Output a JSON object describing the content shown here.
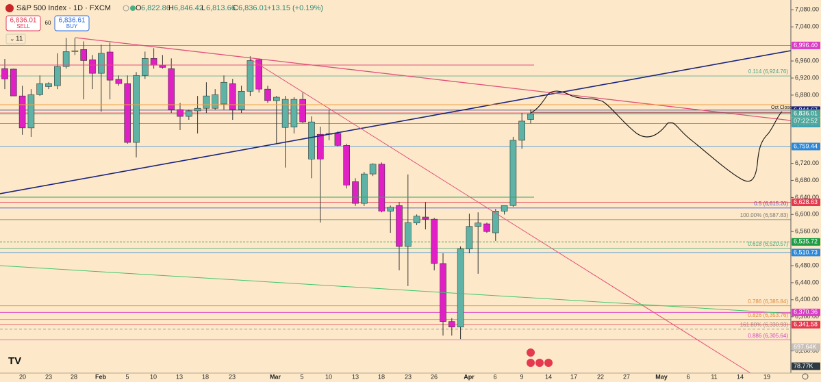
{
  "header": {
    "title": "S&P 500 Index · 1D · FXCM",
    "open_label": "O",
    "open": "6,822.86",
    "high_label": "H",
    "high": "6,846.42",
    "low_label": "L",
    "low": "6,813.66",
    "close_label": "C",
    "close": "6,836.01",
    "change": "+13.15 (+0.19%)",
    "sell_price": "6,836.01",
    "sell_label": "SELL",
    "spread": "60",
    "buy_price": "6,836.61",
    "buy_label": "BUY",
    "indicator_count": "11",
    "countdown": "07:22:52",
    "oct_close": "Oct Close"
  },
  "chart_data": {
    "type": "candlestick",
    "candles": [
      [
        6942,
        6965,
        6894,
        6918
      ],
      [
        6941,
        6942,
        6878,
        6878
      ],
      [
        6878,
        6902,
        6787,
        6803
      ],
      [
        6803,
        6894,
        6782,
        6881
      ],
      [
        6881,
        6926,
        6878,
        6907
      ],
      [
        6900,
        6910,
        6894,
        6907
      ],
      [
        6902,
        6978,
        6894,
        6947
      ],
      [
        6947,
        7014,
        6942,
        6982
      ],
      [
        6982,
        7014,
        6974,
        6984
      ],
      [
        6987,
        7006,
        6870,
        6961
      ],
      [
        6963,
        6974,
        6894,
        6931
      ],
      [
        6931,
        6998,
        6841,
        6978
      ],
      [
        6981,
        7003,
        6870,
        6915
      ],
      [
        6917,
        6926,
        6902,
        6907
      ],
      [
        6907,
        6926,
        6766,
        6769
      ],
      [
        6769,
        6934,
        6734,
        6926
      ],
      [
        6926,
        6982,
        6918,
        6966
      ],
      [
        6966,
        6990,
        6942,
        6950
      ],
      [
        6950,
        6974,
        6942,
        6945
      ],
      [
        6942,
        6966,
        6838,
        6846
      ],
      [
        6846,
        6862,
        6798,
        6830
      ],
      [
        6830,
        6846,
        6822,
        6843
      ],
      [
        6843,
        6878,
        6790,
        6849
      ],
      [
        6849,
        6910,
        6838,
        6878
      ],
      [
        6849,
        6894,
        6846,
        6881
      ],
      [
        6859,
        6926,
        6846,
        6910
      ],
      [
        6907,
        6918,
        6822,
        6846
      ],
      [
        6846,
        6902,
        6838,
        6889
      ],
      [
        6889,
        6971,
        6878,
        6961
      ],
      [
        6963,
        6966,
        6886,
        6894
      ],
      [
        6894,
        6902,
        6862,
        6867
      ],
      [
        6867,
        6878,
        6766,
        6875
      ],
      [
        6804,
        6878,
        6710,
        6870
      ],
      [
        6805,
        6875,
        6790,
        6870
      ],
      [
        6870,
        6886,
        6814,
        6817
      ],
      [
        6730,
        6830,
        6685,
        6817
      ],
      [
        6788,
        6806,
        6581,
        6730
      ],
      [
        6788,
        6846,
        6774,
        6790
      ],
      [
        6790,
        6795,
        6760,
        6762
      ],
      [
        6762,
        6766,
        6661,
        6669
      ],
      [
        6677,
        6685,
        6620,
        6626
      ],
      [
        6626,
        6700,
        6620,
        6695
      ],
      [
        6695,
        6720,
        6690,
        6718
      ],
      [
        6718,
        6722,
        6605,
        6608
      ],
      [
        6608,
        6621,
        6557,
        6617
      ],
      [
        6621,
        6629,
        6469,
        6525
      ],
      [
        6525,
        6694,
        6432,
        6581
      ],
      [
        6580,
        6600,
        6575,
        6596
      ],
      [
        6594,
        6629,
        6565,
        6589
      ],
      [
        6589,
        6592,
        6469,
        6485
      ],
      [
        6485,
        6509,
        6316,
        6349
      ],
      [
        6349,
        6357,
        6316,
        6336
      ],
      [
        6336,
        6525,
        6308,
        6519
      ],
      [
        6519,
        6602,
        6509,
        6572
      ],
      [
        6572,
        6605,
        6461,
        6580
      ],
      [
        6578,
        6581,
        6557,
        6560
      ],
      [
        6557,
        6613,
        6538,
        6608
      ],
      [
        6608,
        6621,
        6600,
        6621
      ],
      [
        6621,
        6782,
        6618,
        6774
      ],
      [
        6774,
        6838,
        6754,
        6819
      ],
      [
        6822.86,
        6846.42,
        6813.66,
        6836.01
      ]
    ],
    "up_color": "#5fb3a6",
    "down_color": "#e01fc4",
    "doji_color": "#f2df5a",
    "ylim": [
      6228,
      7103
    ],
    "yticks": [
      {
        "value": 7080,
        "label": "7,080.00"
      },
      {
        "value": 7040,
        "label": "7,040.00"
      },
      {
        "value": 6960,
        "label": "6,960.00"
      },
      {
        "value": 6920,
        "label": "6,920.00"
      },
      {
        "value": 6880,
        "label": "6,880.00"
      },
      {
        "value": 6720,
        "label": "6,720.00"
      },
      {
        "value": 6680,
        "label": "6,680.00"
      },
      {
        "value": 6640,
        "label": "6,640.00"
      },
      {
        "value": 6600,
        "label": "6,600.00"
      },
      {
        "value": 6560,
        "label": "6,560.00"
      },
      {
        "value": 6480,
        "label": "6,480.00"
      },
      {
        "value": 6440,
        "label": "6,440.00"
      },
      {
        "value": 6400,
        "label": "6,400.00"
      },
      {
        "value": 6360,
        "label": "6,360.00"
      },
      {
        "value": 6280,
        "label": "6,280.00"
      }
    ],
    "x_labels": [
      "20",
      "23",
      "28",
      "Feb",
      "5",
      "10",
      "13",
      "18",
      "23",
      "Mar",
      "5",
      "10",
      "13",
      "18",
      "23",
      "26",
      "Apr",
      "6",
      "9",
      "14",
      "17",
      "22",
      "27",
      "May",
      "6",
      "11",
      "14",
      "19"
    ],
    "levels": [
      {
        "value": 6996.4,
        "label": "6,996.40",
        "color": "#d83cc4"
      },
      {
        "value": 6844.67,
        "label": "6,844.67",
        "color": "#1a237e"
      },
      {
        "value": 6838.06,
        "label": "6,838.06",
        "color": "#e5394f"
      },
      {
        "value": 6836.01,
        "label": "6,836.01",
        "color": "#4ea79c"
      },
      {
        "value": 6813.29,
        "label": "6,813.29",
        "color": "#3fa1b4"
      },
      {
        "value": 6759.44,
        "label": "6,759.44",
        "color": "#2b87d8"
      },
      {
        "value": 6628.63,
        "label": "6,628.63",
        "color": "#e5394f"
      },
      {
        "value": 6535.72,
        "label": "6,535.72",
        "color": "#1d9c44"
      },
      {
        "value": 6510.73,
        "label": "6,510.73",
        "color": "#2b87d8"
      },
      {
        "value": 6370.36,
        "label": "6,370.36",
        "color": "#d83cc4"
      },
      {
        "value": 6341.58,
        "label": "6,341.58",
        "color": "#e5394f"
      }
    ],
    "fib_levels": [
      {
        "value": 6924.76,
        "label": "0.114 (6,924.76)",
        "color": "#4aa38a"
      },
      {
        "value": 6615.2,
        "label": "0.5 (6,615.20)",
        "color": "#3b4fd0"
      },
      {
        "value": 6587.83,
        "label": "100.00% (6,587.83)",
        "color": "#777777"
      },
      {
        "value": 6520.57,
        "label": "0.618 (6,520.57)",
        "color": "#37a37a"
      },
      {
        "value": 6385.84,
        "label": "0.786 (6,385.84)",
        "color": "#e08a3c"
      },
      {
        "value": 6353.76,
        "label": "0.826 (6,353.76)",
        "color": "#e08a3c"
      },
      {
        "value": 6330.93,
        "label": "161.80% (6,330.93)",
        "color": "#888888"
      },
      {
        "value": 6305.64,
        "label": "0.886 (6,305.64)",
        "color": "#d83cc4"
      }
    ],
    "volume_badges": [
      {
        "value": 697640,
        "label": "697.64K",
        "color": "#c8c0b8"
      },
      {
        "value": 78770,
        "label": "78.77K",
        "color": "#2d3a44"
      }
    ]
  }
}
